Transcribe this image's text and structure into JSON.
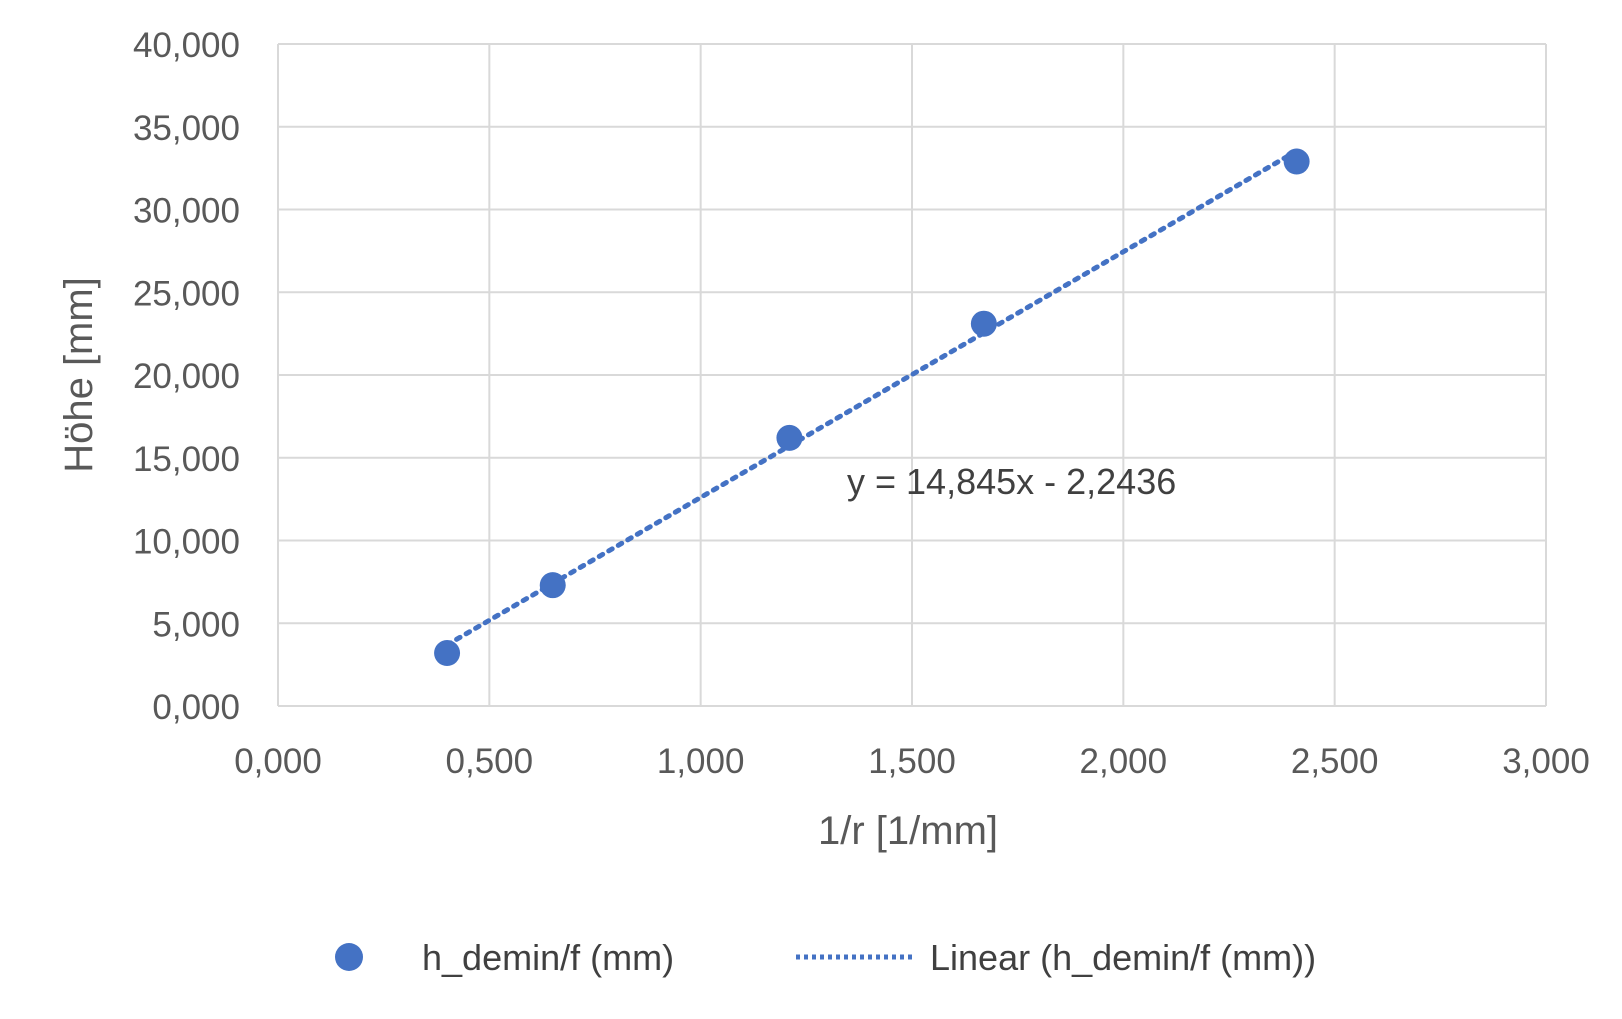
{
  "chart_data": {
    "type": "scatter",
    "title": "",
    "xlabel": "1/r [1/mm]",
    "ylabel": "Höhe [mm]",
    "xlim": [
      0,
      3
    ],
    "ylim": [
      0,
      40
    ],
    "x_ticks": [
      0,
      0.5,
      1.0,
      1.5,
      2.0,
      2.5,
      3.0
    ],
    "x_tick_labels": [
      "0,000",
      "0,500",
      "1,000",
      "1,500",
      "2,000",
      "2,500",
      "3,000"
    ],
    "y_ticks": [
      0,
      5,
      10,
      15,
      20,
      25,
      30,
      35,
      40
    ],
    "y_tick_labels": [
      "0,000",
      "5,000",
      "10,000",
      "15,000",
      "20,000",
      "25,000",
      "30,000",
      "35,000",
      "40,000"
    ],
    "grid": true,
    "legend_position": "bottom",
    "series": [
      {
        "name": "h_demin/f (mm)",
        "color": "#4472C4",
        "x": [
          0.4,
          0.65,
          1.21,
          1.67,
          2.41
        ],
        "y": [
          3.2,
          7.3,
          16.2,
          23.1,
          32.9
        ]
      }
    ],
    "trendline": {
      "name": "Linear (h_demin/f (mm))",
      "type": "linear",
      "slope": 14.845,
      "intercept": -2.2436,
      "x_range": [
        0.4,
        2.41
      ],
      "style": "dotted",
      "color": "#4472C4",
      "equation_label": "y = 14,845x - 2,2436"
    }
  }
}
